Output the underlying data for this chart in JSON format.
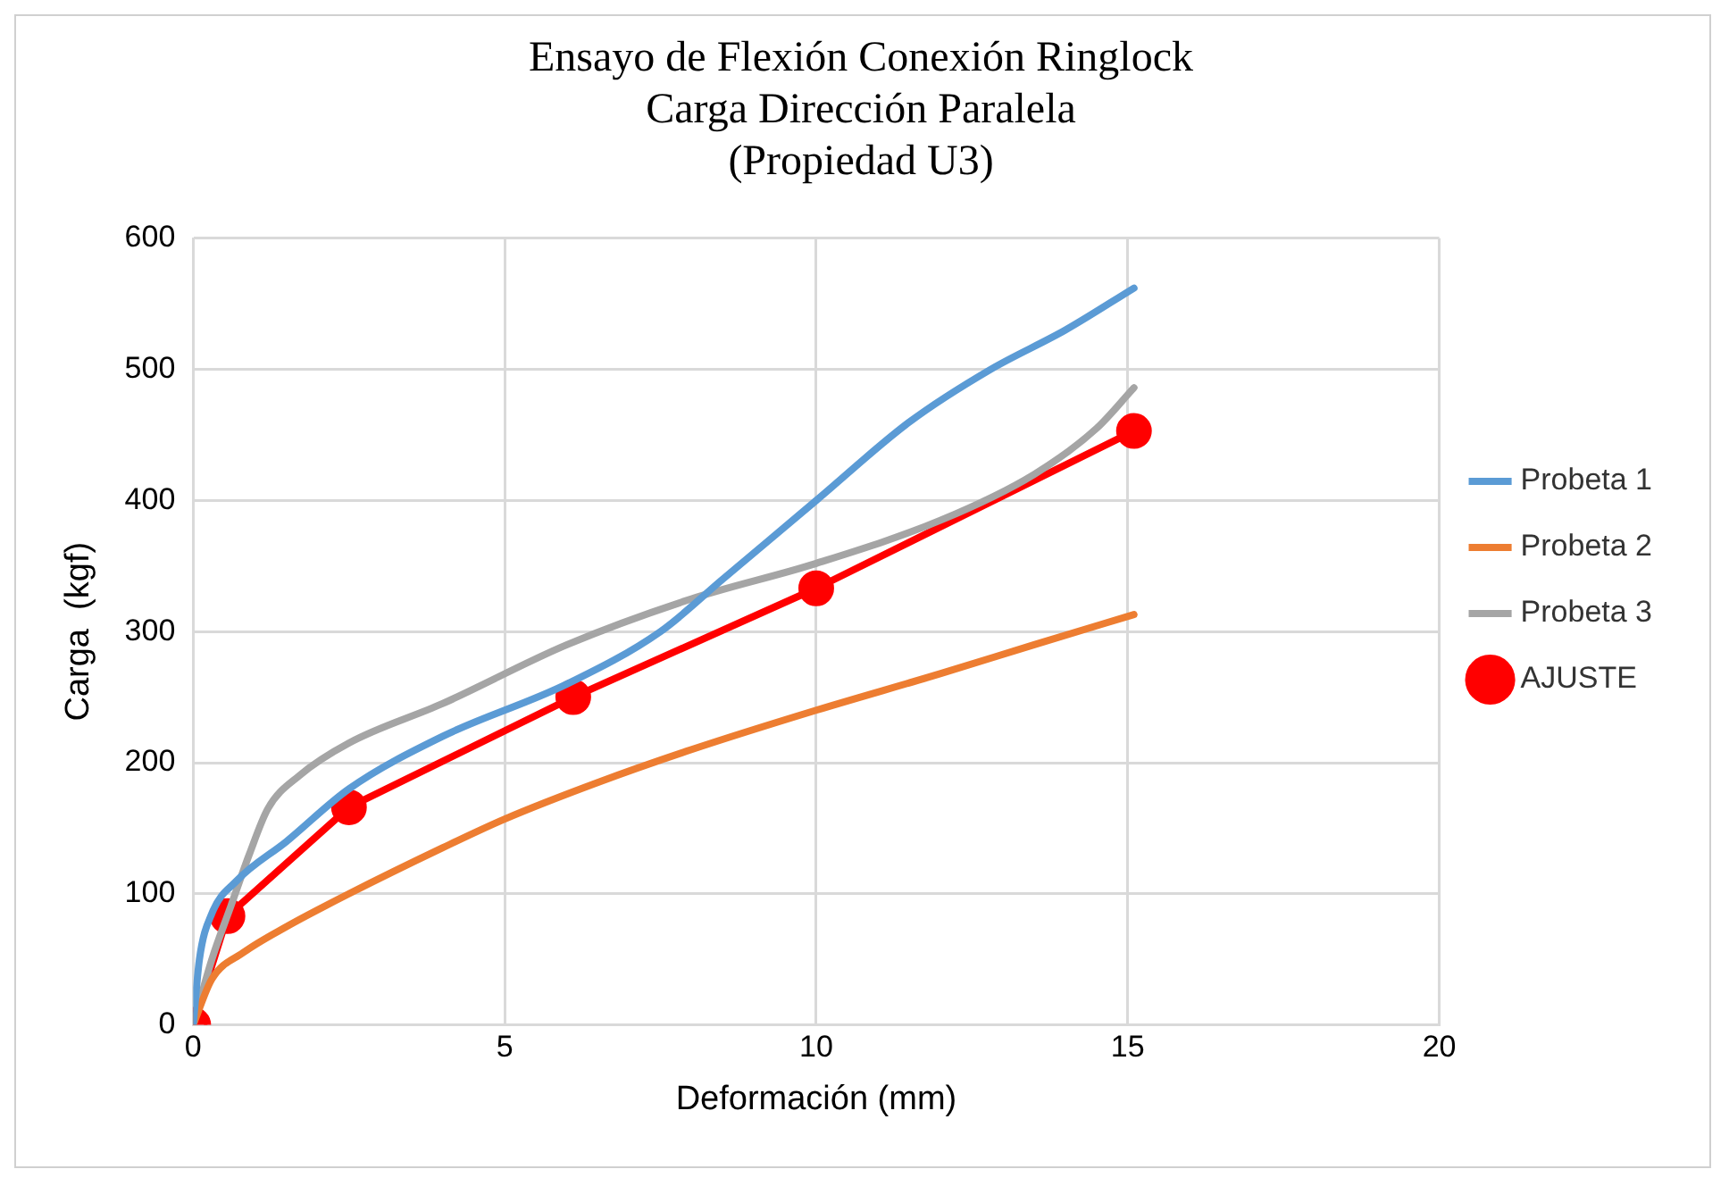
{
  "chart_data": {
    "type": "line",
    "title": [
      "Ensayo de Flexión Conexión Ringlock",
      "Carga Dirección Paralela",
      "(Propiedad U3)"
    ],
    "xlabel": "Deformación (mm)",
    "ylabel": "Carga  (kgf)",
    "xlim": [
      0,
      20
    ],
    "xticks": [
      0,
      5,
      10,
      15,
      20
    ],
    "ylim": [
      0,
      600
    ],
    "yticks": [
      0,
      100,
      200,
      300,
      400,
      500,
      600
    ],
    "grid": true,
    "legend": "right",
    "series": [
      {
        "name": "Probeta 1",
        "color": "#5b9bd5",
        "marker": "none",
        "x": [
          0,
          0.1,
          0.3,
          0.7,
          1.5,
          2.5,
          4,
          6,
          7.5,
          8.5,
          10,
          11.5,
          12.8,
          14,
          15.1
        ],
        "values": [
          0,
          50,
          85,
          110,
          140,
          180,
          220,
          260,
          300,
          340,
          400,
          460,
          500,
          530,
          562
        ]
      },
      {
        "name": "Probeta 2",
        "color": "#ed7d31",
        "marker": "none",
        "x": [
          0,
          0.3,
          0.8,
          1.5,
          2.5,
          4,
          5,
          6.5,
          8,
          10,
          12,
          13.5,
          15.1
        ],
        "values": [
          0,
          35,
          55,
          75,
          100,
          135,
          157,
          185,
          210,
          240,
          268,
          290,
          313
        ]
      },
      {
        "name": "Probeta 3",
        "color": "#a5a5a5",
        "marker": "none",
        "x": [
          0,
          0.3,
          0.6,
          0.9,
          1.2,
          1.7,
          2.5,
          4,
          6,
          8,
          10,
          12,
          13.5,
          14.5,
          15.1
        ],
        "values": [
          0,
          50,
          90,
          130,
          165,
          190,
          215,
          245,
          290,
          325,
          352,
          385,
          420,
          455,
          486
        ]
      },
      {
        "name": "AJUSTE",
        "color": "#ff0000",
        "marker": "circle",
        "x": [
          0,
          0.55,
          2.5,
          6.1,
          10,
          15.1
        ],
        "values": [
          0,
          83,
          166,
          250,
          333,
          453
        ]
      }
    ]
  }
}
